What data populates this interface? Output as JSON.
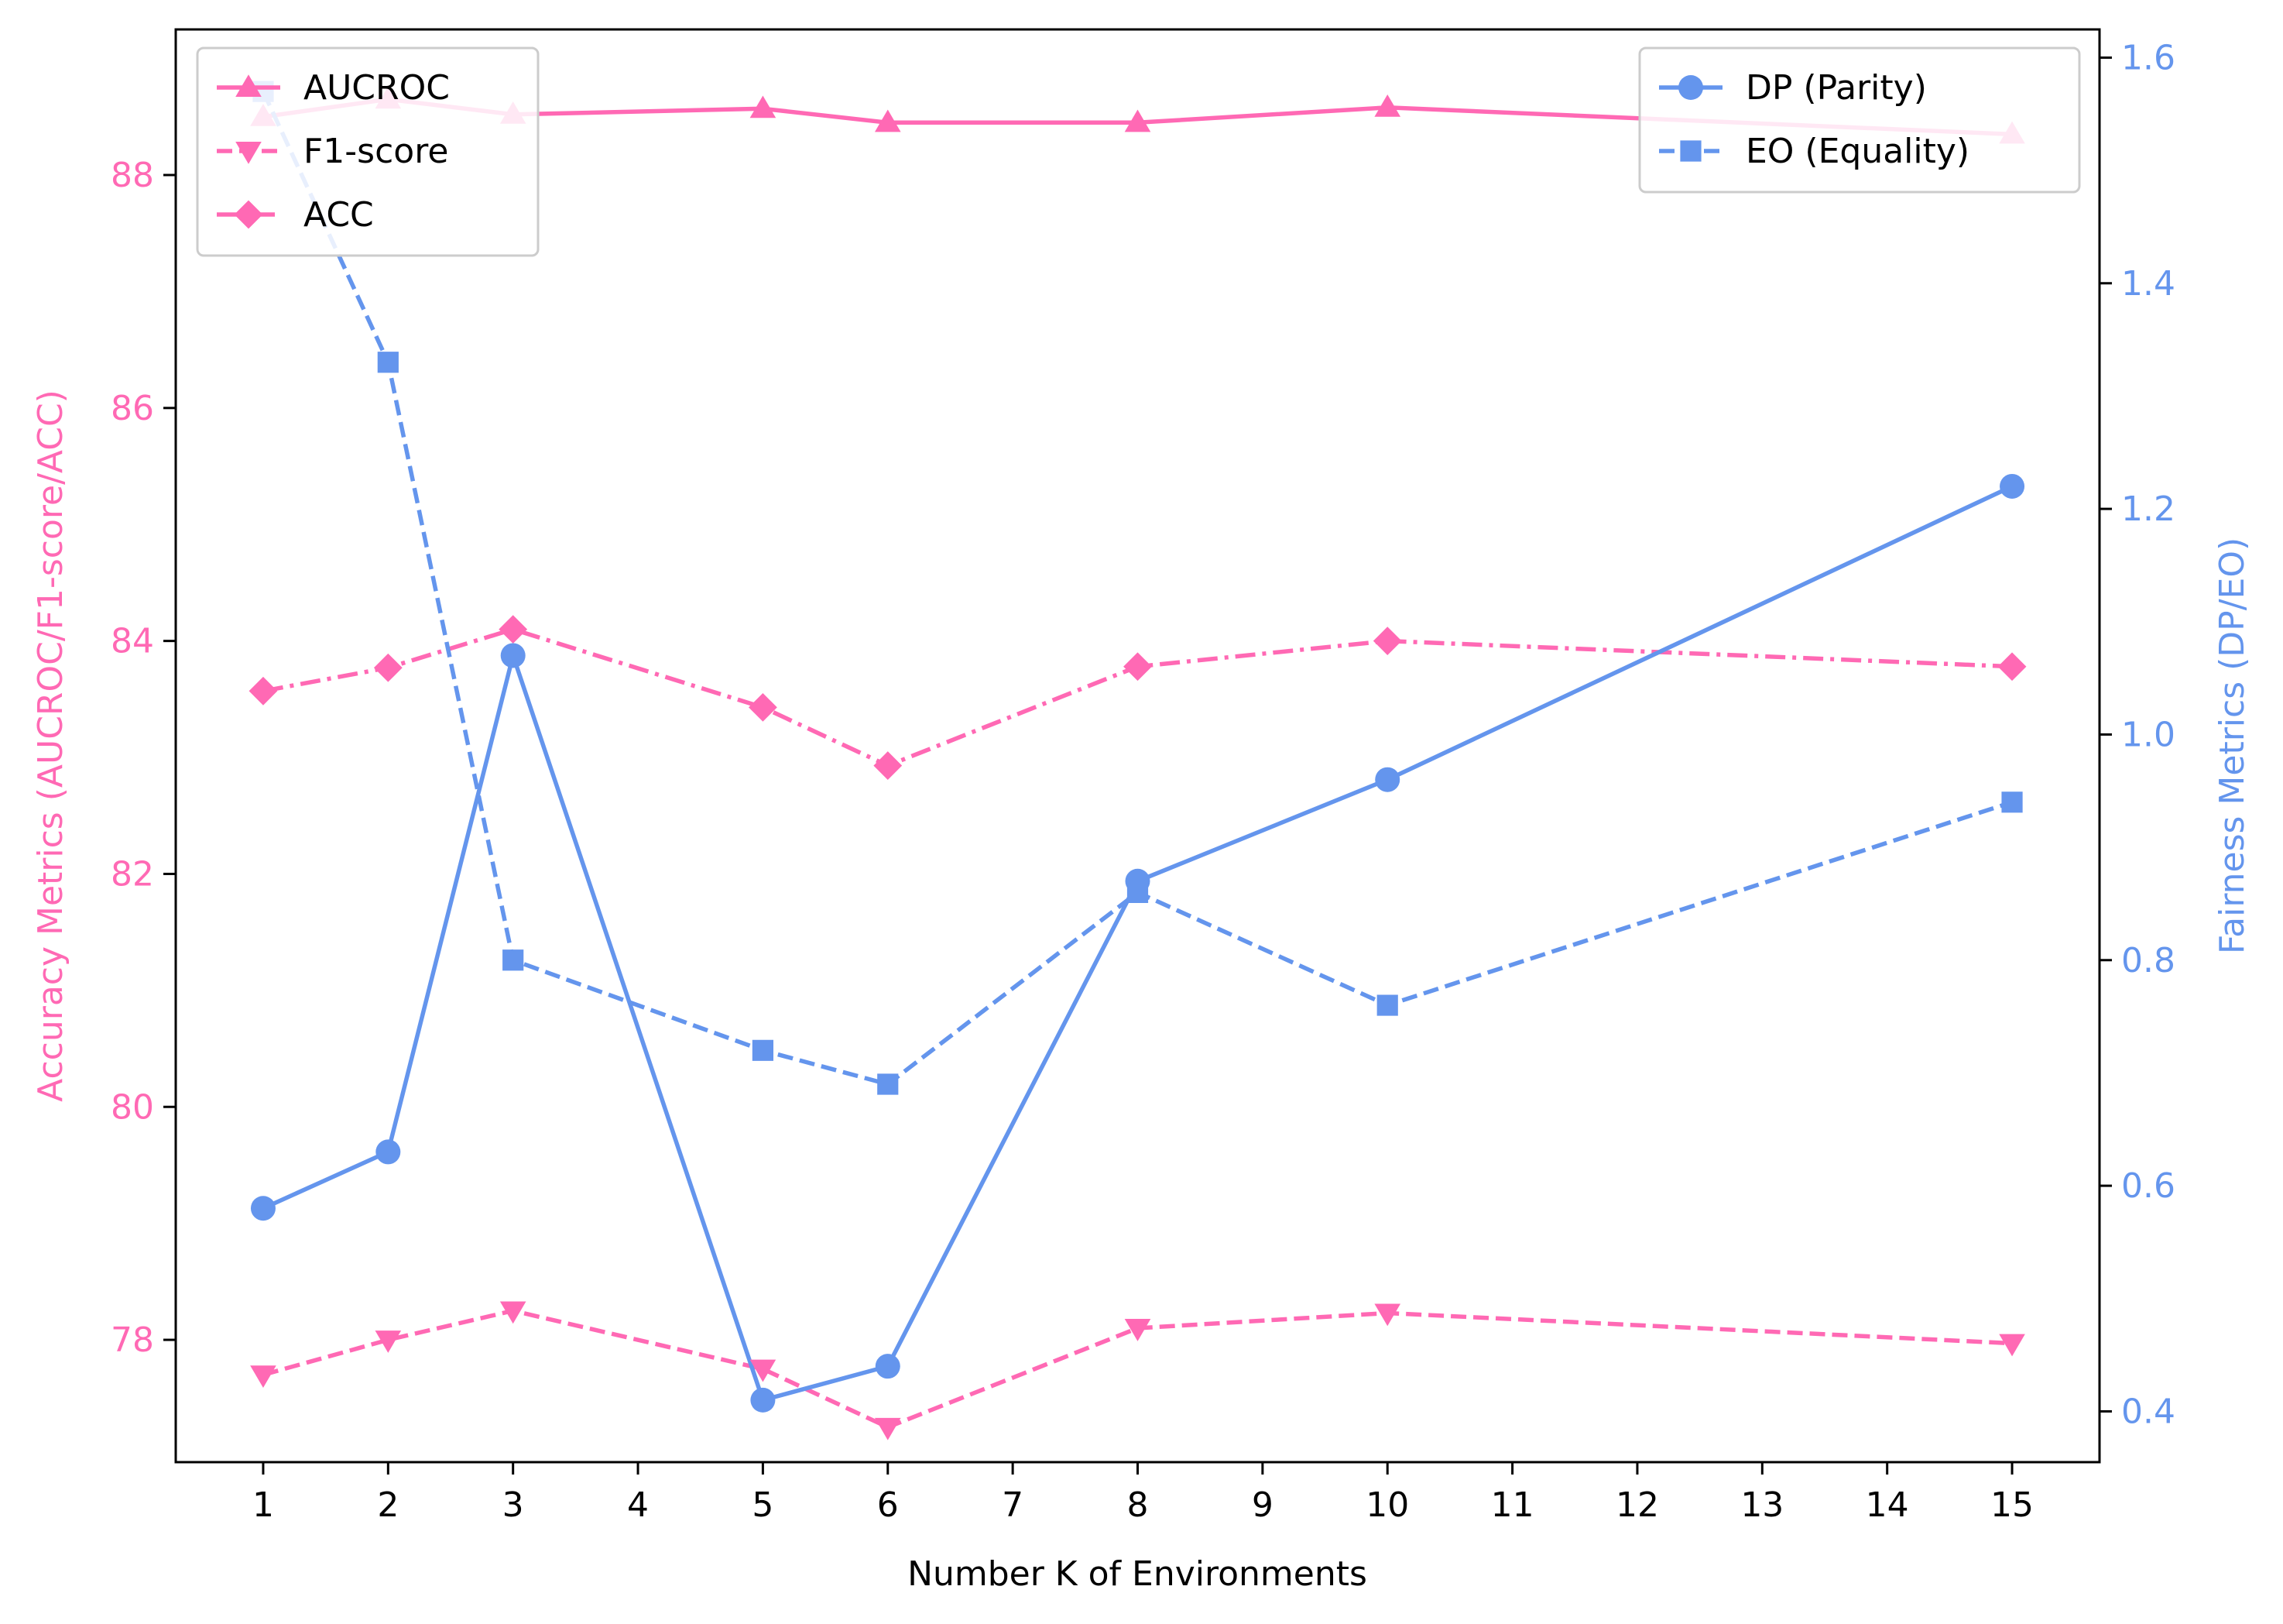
{
  "chart_data": {
    "type": "line",
    "title": "",
    "xlabel": "Number K of Environments",
    "ylabel_left": "Accuracy Metrics (AUCROC/F1-score/ACC)",
    "ylabel_right": "Fairness Metrics (DP/EO)",
    "x": [
      1,
      2,
      3,
      5,
      6,
      8,
      10,
      15
    ],
    "x_ticks": [
      "1",
      "2",
      "3",
      "4",
      "5",
      "6",
      "7",
      "8",
      "9",
      "10",
      "11",
      "12",
      "13",
      "14",
      "15"
    ],
    "x_range": [
      0.3,
      15.7
    ],
    "y_left_range": [
      76.95,
      89.25
    ],
    "y_left_ticks": [
      "78",
      "80",
      "82",
      "84",
      "86",
      "88"
    ],
    "y_right_range": [
      0.355,
      1.625
    ],
    "y_right_ticks": [
      "0.4",
      "0.6",
      "0.8",
      "1.0",
      "1.2",
      "1.4",
      "1.6"
    ],
    "grid": false,
    "legend_left_placement": "top-left",
    "legend_right_placement": "top-right",
    "colors": {
      "accuracy": "#ff69b4",
      "fairness": "#6495ed"
    },
    "series_left": [
      {
        "name": "AUCROC",
        "marker": "triangle-up",
        "linestyle": "solid",
        "values": [
          88.5,
          88.65,
          88.52,
          88.57,
          88.45,
          88.45,
          88.58,
          88.35
        ]
      },
      {
        "name": "F1-score",
        "marker": "triangle-down",
        "linestyle": "dashed",
        "values": [
          77.7,
          78.0,
          78.25,
          77.75,
          77.25,
          78.1,
          78.23,
          77.97
        ]
      },
      {
        "name": "ACC",
        "marker": "diamond",
        "linestyle": "dashdot",
        "values": [
          83.57,
          83.77,
          84.1,
          83.43,
          82.93,
          83.78,
          84.0,
          83.78
        ]
      }
    ],
    "series_right": [
      {
        "name": "DP (Parity)",
        "marker": "circle",
        "linestyle": "solid",
        "values": [
          0.58,
          0.63,
          1.07,
          0.41,
          0.44,
          0.87,
          0.96,
          1.22
        ]
      },
      {
        "name": "EO (Equality)",
        "marker": "square",
        "linestyle": "dashed",
        "values": [
          1.57,
          1.33,
          0.8,
          0.72,
          0.69,
          0.86,
          0.76,
          0.94
        ]
      }
    ]
  }
}
